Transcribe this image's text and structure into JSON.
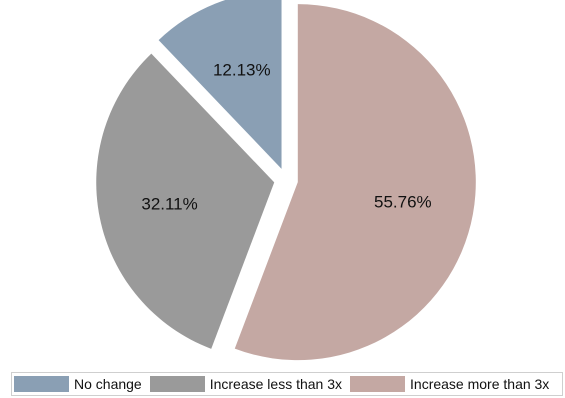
{
  "chart_data": {
    "type": "pie",
    "slices": [
      {
        "label": "No change",
        "value": 12.13,
        "display": "12.13%",
        "color": "#8a9fb4"
      },
      {
        "label": "Increase less than 3x",
        "value": 32.11,
        "display": "32.11%",
        "color": "#9a9a9a"
      },
      {
        "label": "Increase more than 3x",
        "value": 55.76,
        "display": "55.76%",
        "color": "#c4a8a3"
      }
    ],
    "exploded": true,
    "legend_placement": "bottom"
  }
}
